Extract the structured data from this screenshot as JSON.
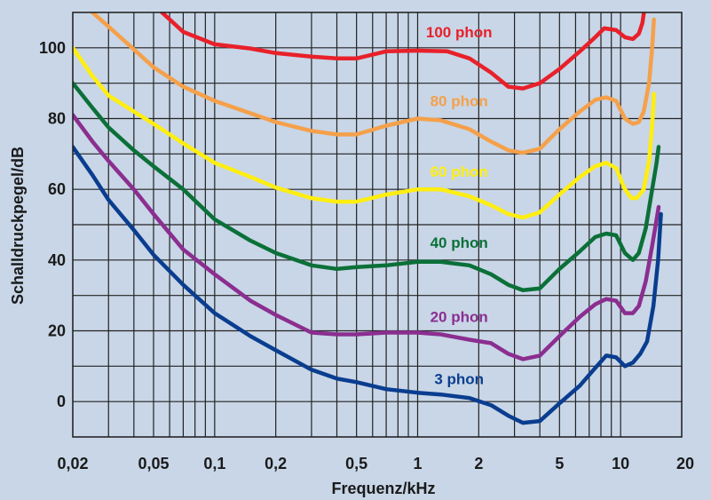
{
  "chart_data": {
    "type": "line",
    "title": "",
    "xlabel": "Frequenz/kHz",
    "ylabel": "Schalldruckpegel/dB",
    "x_scale": "log",
    "xlim": [
      0.02,
      20
    ],
    "ylim": [
      -10,
      110
    ],
    "grid": true,
    "x_ticks": [
      {
        "v": 0.02,
        "label": "0,02"
      },
      {
        "v": 0.05,
        "label": "0,05"
      },
      {
        "v": 0.1,
        "label": "0,1"
      },
      {
        "v": 0.2,
        "label": "0,2"
      },
      {
        "v": 0.5,
        "label": "0,5"
      },
      {
        "v": 1,
        "label": "1"
      },
      {
        "v": 2,
        "label": "2"
      },
      {
        "v": 5,
        "label": "5"
      },
      {
        "v": 10,
        "label": "10"
      },
      {
        "v": 20,
        "label": "20"
      }
    ],
    "y_ticks": [
      {
        "v": 0,
        "label": "0"
      },
      {
        "v": 20,
        "label": "20"
      },
      {
        "v": 40,
        "label": "40"
      },
      {
        "v": 60,
        "label": "60"
      },
      {
        "v": 80,
        "label": "80"
      },
      {
        "v": 100,
        "label": "100"
      }
    ],
    "series": [
      {
        "name": "100 phon",
        "color": "#e8202a",
        "label_at": [
          1.6,
          103
        ],
        "points": [
          [
            0.055,
            110
          ],
          [
            0.07,
            104.5
          ],
          [
            0.1,
            101
          ],
          [
            0.15,
            99.8
          ],
          [
            0.2,
            98.5
          ],
          [
            0.3,
            97.5
          ],
          [
            0.4,
            97
          ],
          [
            0.5,
            97
          ],
          [
            0.7,
            99
          ],
          [
            1,
            99.2
          ],
          [
            1.4,
            99
          ],
          [
            1.8,
            97
          ],
          [
            2.3,
            93
          ],
          [
            2.8,
            89
          ],
          [
            3.3,
            88.5
          ],
          [
            4,
            90
          ],
          [
            5,
            94
          ],
          [
            6.3,
            99
          ],
          [
            7.5,
            103
          ],
          [
            8.3,
            105.5
          ],
          [
            9.5,
            105
          ],
          [
            10.5,
            103
          ],
          [
            11.5,
            102.5
          ],
          [
            12.3,
            104
          ],
          [
            12.8,
            107
          ],
          [
            13.1,
            111
          ]
        ]
      },
      {
        "name": "80 phon",
        "color": "#f5a04a",
        "label_at": [
          1.6,
          83.5
        ],
        "points": [
          [
            0.025,
            110
          ],
          [
            0.03,
            106
          ],
          [
            0.05,
            94.5
          ],
          [
            0.07,
            89
          ],
          [
            0.1,
            85
          ],
          [
            0.15,
            81.5
          ],
          [
            0.2,
            79
          ],
          [
            0.3,
            76.5
          ],
          [
            0.4,
            75.5
          ],
          [
            0.5,
            75.5
          ],
          [
            0.7,
            78
          ],
          [
            1,
            80
          ],
          [
            1.3,
            79.5
          ],
          [
            1.8,
            77
          ],
          [
            2.3,
            73.5
          ],
          [
            2.8,
            71
          ],
          [
            3.3,
            70.3
          ],
          [
            4,
            71.5
          ],
          [
            5,
            77
          ],
          [
            6.3,
            82
          ],
          [
            7.5,
            85.3
          ],
          [
            8.5,
            86
          ],
          [
            9.5,
            85
          ],
          [
            10.5,
            80
          ],
          [
            11.5,
            78.5
          ],
          [
            12.3,
            79
          ],
          [
            13,
            82
          ],
          [
            13.8,
            90
          ],
          [
            14.3,
            100
          ],
          [
            14.6,
            108
          ]
        ]
      },
      {
        "name": "60 phon",
        "color": "#ffee10",
        "label_at": [
          1.6,
          63.5
        ],
        "points": [
          [
            0.02,
            100
          ],
          [
            0.025,
            92
          ],
          [
            0.03,
            86.5
          ],
          [
            0.05,
            78.5
          ],
          [
            0.07,
            73
          ],
          [
            0.1,
            67.5
          ],
          [
            0.15,
            63.5
          ],
          [
            0.2,
            60.5
          ],
          [
            0.3,
            57.5
          ],
          [
            0.4,
            56.5
          ],
          [
            0.5,
            56.5
          ],
          [
            0.7,
            58.5
          ],
          [
            1,
            60
          ],
          [
            1.3,
            60
          ],
          [
            1.8,
            58
          ],
          [
            2.3,
            55.5
          ],
          [
            2.8,
            53
          ],
          [
            3.3,
            52
          ],
          [
            4,
            53.5
          ],
          [
            5,
            58.5
          ],
          [
            6.3,
            63.5
          ],
          [
            7.5,
            66.5
          ],
          [
            8.5,
            67.5
          ],
          [
            9.5,
            66
          ],
          [
            10.5,
            60
          ],
          [
            11.3,
            57.5
          ],
          [
            12,
            57.5
          ],
          [
            13,
            60
          ],
          [
            13.8,
            68
          ],
          [
            14.3,
            78
          ],
          [
            14.6,
            87
          ]
        ]
      },
      {
        "name": "40 phon",
        "color": "#0b7038",
        "label_at": [
          1.6,
          43.5
        ],
        "points": [
          [
            0.02,
            90
          ],
          [
            0.025,
            83
          ],
          [
            0.03,
            77.5
          ],
          [
            0.04,
            71
          ],
          [
            0.05,
            66.5
          ],
          [
            0.07,
            60
          ],
          [
            0.1,
            51.5
          ],
          [
            0.15,
            45.5
          ],
          [
            0.2,
            42
          ],
          [
            0.3,
            38.5
          ],
          [
            0.4,
            37.5
          ],
          [
            0.5,
            38
          ],
          [
            0.7,
            38.5
          ],
          [
            1,
            39.5
          ],
          [
            1.3,
            39.5
          ],
          [
            1.8,
            38.5
          ],
          [
            2.3,
            36
          ],
          [
            2.8,
            33
          ],
          [
            3.3,
            31.5
          ],
          [
            4,
            32
          ],
          [
            5,
            37.5
          ],
          [
            6.3,
            42.5
          ],
          [
            7.5,
            46.5
          ],
          [
            8.5,
            47.5
          ],
          [
            9.5,
            47
          ],
          [
            10.5,
            42
          ],
          [
            11.5,
            40
          ],
          [
            12.3,
            42
          ],
          [
            13.3,
            49
          ],
          [
            14.3,
            60
          ],
          [
            15,
            67
          ],
          [
            15.4,
            72
          ]
        ]
      },
      {
        "name": "20 phon",
        "color": "#8b2e90",
        "label_at": [
          1.6,
          22.5
        ],
        "points": [
          [
            0.02,
            81
          ],
          [
            0.025,
            73.5
          ],
          [
            0.03,
            68
          ],
          [
            0.04,
            60
          ],
          [
            0.05,
            53
          ],
          [
            0.07,
            43
          ],
          [
            0.1,
            36
          ],
          [
            0.15,
            28.5
          ],
          [
            0.2,
            24.5
          ],
          [
            0.3,
            19.5
          ],
          [
            0.4,
            19
          ],
          [
            0.5,
            19
          ],
          [
            0.7,
            19.5
          ],
          [
            1,
            19.5
          ],
          [
            1.3,
            19
          ],
          [
            1.8,
            17.5
          ],
          [
            2.3,
            16.5
          ],
          [
            2.8,
            13.5
          ],
          [
            3.3,
            12
          ],
          [
            4,
            13
          ],
          [
            5,
            18.5
          ],
          [
            6.3,
            24
          ],
          [
            7.5,
            27.5
          ],
          [
            8.5,
            29
          ],
          [
            9.5,
            28.5
          ],
          [
            10.5,
            25
          ],
          [
            11.5,
            25
          ],
          [
            12.3,
            27
          ],
          [
            13.3,
            34
          ],
          [
            14.3,
            44
          ],
          [
            15,
            51
          ],
          [
            15.4,
            55
          ]
        ]
      },
      {
        "name": "3 phon",
        "color": "#0a3d8f",
        "label_at": [
          1.6,
          5
        ],
        "points": [
          [
            0.02,
            72
          ],
          [
            0.025,
            64
          ],
          [
            0.03,
            57
          ],
          [
            0.04,
            48.5
          ],
          [
            0.05,
            41.5
          ],
          [
            0.07,
            33
          ],
          [
            0.1,
            25
          ],
          [
            0.15,
            18.5
          ],
          [
            0.2,
            14.5
          ],
          [
            0.3,
            9
          ],
          [
            0.4,
            6.5
          ],
          [
            0.5,
            5.5
          ],
          [
            0.7,
            3.5
          ],
          [
            1,
            2.5
          ],
          [
            1.3,
            2
          ],
          [
            1.8,
            1
          ],
          [
            2.3,
            -1
          ],
          [
            2.8,
            -4
          ],
          [
            3.3,
            -6
          ],
          [
            4,
            -5.5
          ],
          [
            5,
            -0.5
          ],
          [
            6.3,
            4.5
          ],
          [
            7.5,
            9.5
          ],
          [
            8.5,
            13
          ],
          [
            9.5,
            12.5
          ],
          [
            10.5,
            10
          ],
          [
            11.5,
            11
          ],
          [
            12.5,
            13.5
          ],
          [
            13.5,
            17
          ],
          [
            14.5,
            27
          ],
          [
            15.3,
            40
          ],
          [
            15.8,
            53
          ]
        ]
      }
    ]
  }
}
